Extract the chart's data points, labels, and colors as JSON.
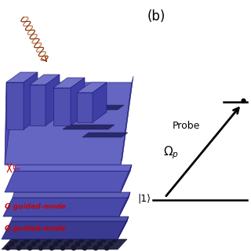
{
  "bg_color": "#ffffff",
  "label_b": "(b)",
  "label_b_fontsize": 12,
  "probe_label": "Probe",
  "omega_label": "$\\Omega_p$",
  "state1_label": "|1⟩",
  "text_color": "#000000",
  "wavy_color": "#8b3a0a",
  "red_text_color": "#cc0000",
  "blue_slab": "#5555bb",
  "blue_dark": "#3a3a90",
  "blue_mid": "#4848aa",
  "blue_light": "#7777cc",
  "blue_top": "#8888dd",
  "blue_pillar_front": "#4444a8",
  "blue_pillar_top": "#6666c4",
  "blue_pillar_side": "#3a3a95",
  "graphene_dark": "#252545",
  "graphene_mid": "#35355a",
  "guided_mode1_text": "Q guided-mode",
  "guided_mode2_text": "Q guided-mode"
}
